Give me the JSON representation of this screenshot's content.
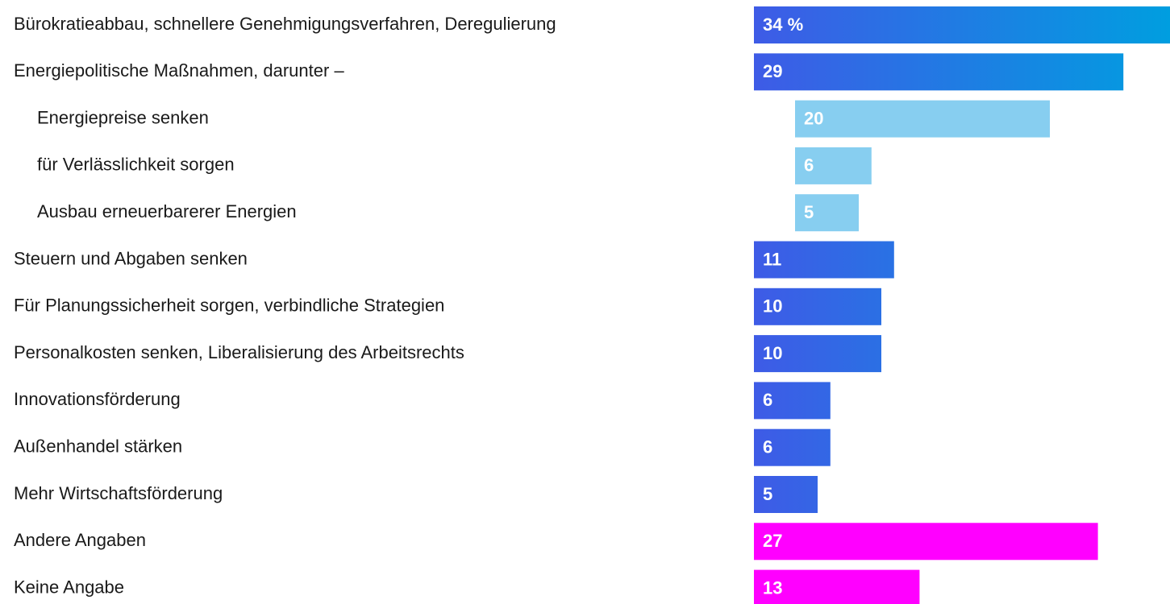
{
  "chart_data": {
    "type": "bar",
    "orientation": "horizontal",
    "categories": [
      "Bürokratieabbau, schnellere Genehmigungsverfahren, Deregulierung",
      "Energiepolitische Maßnahmen, darunter –",
      "Energiepreise senken",
      "für Verlässlichkeit sorgen",
      "Ausbau erneuerbarerer Energien",
      "Steuern und Abgaben senken",
      "Für Planungssicherheit sorgen, verbindliche Strategien",
      "Personalkosten senken, Liberalisierung des Arbeitsrechts",
      "Innovationsförderung",
      "Außenhandel stärken",
      "Mehr Wirtschaftsförderung",
      "Andere Angaben",
      "Keine Angabe"
    ],
    "values": [
      34,
      29,
      20,
      6,
      5,
      11,
      10,
      10,
      6,
      6,
      5,
      27,
      13
    ],
    "value_labels": [
      "34 %",
      "29",
      "20",
      "6",
      "5",
      "11",
      "10",
      "10",
      "6",
      "6",
      "5",
      "27",
      "13"
    ],
    "colors": [
      "blue-gradient",
      "blue-gradient",
      "#87cef0",
      "#87cef0",
      "#87cef0",
      "blue-gradient",
      "blue-gradient",
      "blue-gradient",
      "blue-gradient",
      "blue-gradient",
      "blue-gradient",
      "#ff00ff",
      "#ff00ff"
    ]
  }
}
